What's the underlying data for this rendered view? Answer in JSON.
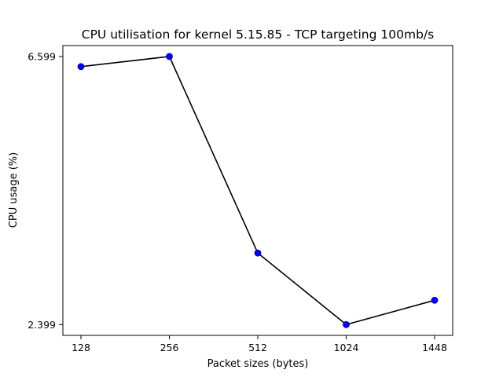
{
  "chart_data": {
    "type": "line",
    "title": "CPU utilisation for kernel 5.15.85 - TCP targeting 100mb/s",
    "xlabel": "Packet sizes (bytes)",
    "ylabel": "CPU usage (%)",
    "categories": [
      "128",
      "256",
      "512",
      "1024",
      "1448"
    ],
    "series": [
      {
        "values": [
          6.44,
          6.599,
          3.52,
          2.399,
          2.78
        ]
      }
    ],
    "yticks": [
      "6.599",
      "2.399"
    ],
    "ylim": [
      2.23,
      6.77
    ],
    "grid": false,
    "line_color": "#000000",
    "marker_color": "#0000ff"
  }
}
